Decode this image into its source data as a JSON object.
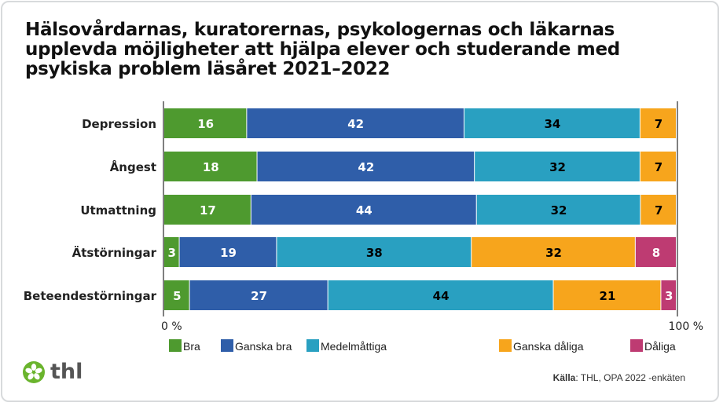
{
  "chart_data": {
    "type": "bar",
    "orientation": "horizontal",
    "stacked": "percent",
    "title": "Hälsovårdarnas, kuratorernas, psykologernas och läkarnas upplevda möjligheter att hjälpa elever och studerande med psykiska problem läsåret 2021–2022",
    "categories": [
      "Depression",
      "Ångest",
      "Utmattning",
      "Ätstörningar",
      "Beteendestörningar"
    ],
    "series": [
      {
        "name": "Bra",
        "color": "#4e9a2f",
        "values": [
          16,
          18,
          17,
          3,
          5
        ]
      },
      {
        "name": "Ganska bra",
        "color": "#2f5ea9",
        "values": [
          42,
          42,
          44,
          19,
          27
        ]
      },
      {
        "name": "Medelmåttiga",
        "color": "#29a0c1",
        "values": [
          34,
          32,
          32,
          38,
          44
        ]
      },
      {
        "name": "Ganska dåliga",
        "color": "#f7a51c",
        "values": [
          7,
          7,
          7,
          32,
          21
        ]
      },
      {
        "name": "Dåliga",
        "color": "#be3b72",
        "values": [
          null,
          null,
          null,
          8,
          3
        ]
      }
    ],
    "xlim": [
      0,
      100
    ],
    "xtick_labels": [
      "0 %",
      "100 %"
    ],
    "legend_position": "bottom",
    "grid": false
  },
  "source": {
    "label": "Källa",
    "text": ": THL, OPA 2022 -enkäten"
  },
  "logo": {
    "text": "thl"
  }
}
